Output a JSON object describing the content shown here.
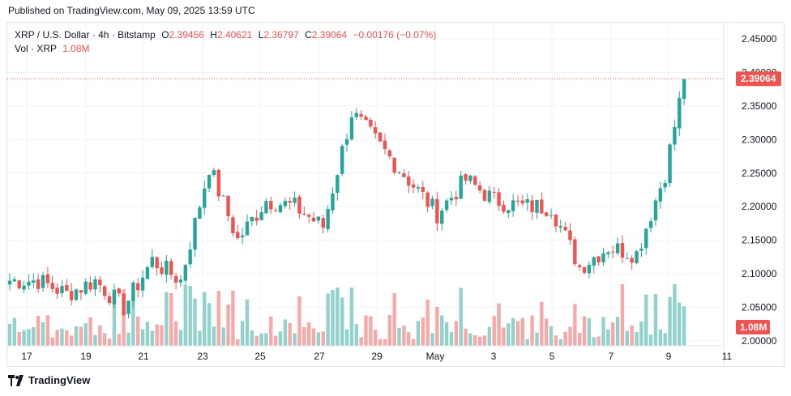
{
  "header": {
    "published": "Published on TradingView.com, May 09, 2025 13:59 UTC"
  },
  "legend": {
    "symbol": "XRP / U.S. Dollar · 4h · Bitstamp",
    "open_label": "O",
    "open": "2.39456",
    "high_label": "H",
    "high": "2.40621",
    "low_label": "L",
    "low": "2.36797",
    "close_label": "C",
    "close": "2.39064",
    "change": "−0.00176 (−0.07%)",
    "vol_label": "Vol · XRP",
    "vol": "1.08M"
  },
  "footer": {
    "brand": "TradingView"
  },
  "colors": {
    "up": "#26a69a",
    "down": "#ef5350",
    "up_vol": "#92d2cc",
    "down_vol": "#f7a9a7",
    "grid": "#f0f3fa",
    "axis_text": "#131722"
  },
  "chart_data": {
    "type": "candlestick",
    "symbol": "XRP / U.S. Dollar",
    "interval": "4h",
    "exchange": "Bitstamp",
    "x_ticks": [
      "17",
      "19",
      "21",
      "23",
      "25",
      "27",
      "29",
      "May",
      "3",
      "5",
      "7",
      "9",
      "11"
    ],
    "y_ticks": [
      "2.45000",
      "2.40000",
      "2.35000",
      "2.30000",
      "2.25000",
      "2.20000",
      "2.15000",
      "2.10000",
      "2.05000",
      "2.00000"
    ],
    "ylim": [
      2.0,
      2.46
    ],
    "last_price": "2.39064",
    "volume_label": "1.08M",
    "grid": true,
    "anchor_points": [
      {
        "bar": 0,
        "close": 2.09
      },
      {
        "bar": 6,
        "close": 2.09
      },
      {
        "bar": 12,
        "close": 2.07
      },
      {
        "bar": 18,
        "close": 2.09
      },
      {
        "bar": 24,
        "close": 2.05
      },
      {
        "bar": 30,
        "close": 2.12
      },
      {
        "bar": 36,
        "close": 2.09
      },
      {
        "bar": 42,
        "close": 2.26
      },
      {
        "bar": 48,
        "close": 2.15
      },
      {
        "bar": 54,
        "close": 2.21
      },
      {
        "bar": 60,
        "close": 2.2
      },
      {
        "bar": 66,
        "close": 2.17
      },
      {
        "bar": 72,
        "close": 2.34
      },
      {
        "bar": 78,
        "close": 2.29
      },
      {
        "bar": 84,
        "close": 2.24
      },
      {
        "bar": 90,
        "close": 2.19
      },
      {
        "bar": 96,
        "close": 2.24
      },
      {
        "bar": 102,
        "close": 2.21
      },
      {
        "bar": 108,
        "close": 2.2
      },
      {
        "bar": 114,
        "close": 2.2
      },
      {
        "bar": 120,
        "close": 2.11
      },
      {
        "bar": 126,
        "close": 2.14
      },
      {
        "bar": 132,
        "close": 2.13
      },
      {
        "bar": 138,
        "close": 2.25
      },
      {
        "bar": 142,
        "close": 2.39
      }
    ],
    "bars_total": 143
  }
}
